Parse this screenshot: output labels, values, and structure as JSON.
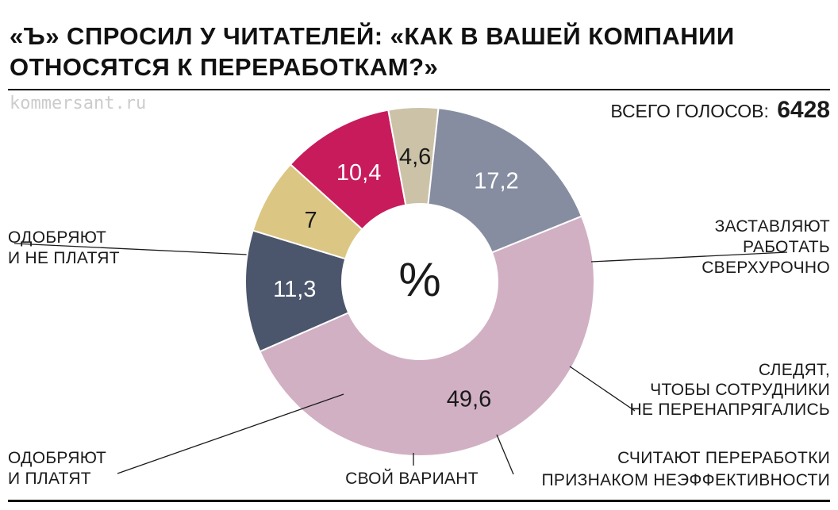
{
  "header": {
    "title_line1": "«Ъ» СПРОСИЛ У ЧИТАТЕЛЕЙ: «КАК В ВАШЕЙ КОМПАНИИ",
    "title_line2": "ОТНОСЯТСЯ К ПЕРЕРАБОТКАМ?»",
    "source": "kommersant.ru",
    "total_label": "ВСЕГО ГОЛОСОВ:",
    "total_value": "6428"
  },
  "chart_data": {
    "type": "pie",
    "donut": true,
    "center_label": "%",
    "unit": "%",
    "title": "«Ъ» СПРОСИЛ У ЧИТАТЕЛЕЙ: «КАК В ВАШЕЙ КОМПАНИИ ОТНОСЯТСЯ К ПЕРЕРАБОТКАМ?»",
    "total_votes": 6428,
    "slices": [
      {
        "value": 49.6,
        "value_label": "49,6",
        "label": [
          "ОДОБРЯЮТ",
          "И НЕ ПЛАТЯТ"
        ],
        "color": "#d1b0c4",
        "text_color": "#1a1a1a"
      },
      {
        "value": 11.3,
        "value_label": "11,3",
        "label": [
          "ЗАСТАВЛЯЮТ",
          "РАБОТАТЬ",
          "СВЕРХУРОЧНО"
        ],
        "color": "#4b566c",
        "text_color": "#ffffff"
      },
      {
        "value": 7,
        "value_label": "7",
        "label": [
          "СЛЕДЯТ,",
          "ЧТОБЫ СОТРУДНИКИ",
          "НЕ ПЕРЕНАПРЯГАЛИСЬ"
        ],
        "color": "#dcc683",
        "text_color": "#1a1a1a"
      },
      {
        "value": 10.4,
        "value_label": "10,4",
        "label": [
          "СЧИТАЮТ ПЕРЕРАБОТКИ",
          "ПРИЗНАКОМ НЕЭФФЕКТИВНОСТИ"
        ],
        "color": "#c71b5c",
        "text_color": "#ffffff"
      },
      {
        "value": 4.6,
        "value_label": "4,6",
        "label": [
          "СВОЙ ВАРИАНТ"
        ],
        "color": "#ccc2a8",
        "text_color": "#1a1a1a"
      },
      {
        "value": 17.2,
        "value_label": "17,2",
        "label": [
          "ОДОБРЯЮТ",
          "И ПЛАТЯТ"
        ],
        "color": "#868da0",
        "text_color": "#ffffff"
      }
    ]
  }
}
